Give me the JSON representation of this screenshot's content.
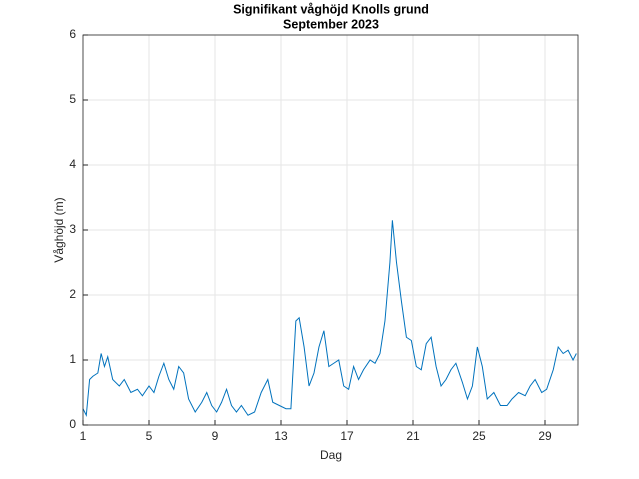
{
  "chart_data": {
    "type": "line",
    "title": "Signifikant våghöjd Knolls grund",
    "subtitle": "September 2023",
    "x_label": "Dag",
    "y_label": "Våghöjd (m)",
    "xlim": [
      1,
      31
    ],
    "xticks": [
      1,
      5,
      9,
      13,
      17,
      21,
      25,
      29
    ],
    "ylim": [
      0,
      6
    ],
    "yticks": [
      0,
      1,
      2,
      3,
      4,
      5,
      6
    ],
    "grid": true,
    "series": [
      {
        "name": "Våghöjd",
        "color": "#0072bd",
        "x": [
          1.0,
          1.2,
          1.4,
          1.6,
          1.9,
          2.1,
          2.3,
          2.5,
          2.8,
          3.2,
          3.5,
          3.9,
          4.3,
          4.6,
          5.0,
          5.3,
          5.6,
          5.9,
          6.2,
          6.5,
          6.8,
          7.1,
          7.4,
          7.8,
          8.2,
          8.5,
          8.8,
          9.1,
          9.4,
          9.7,
          10.0,
          10.3,
          10.6,
          11.0,
          11.4,
          11.8,
          12.2,
          12.5,
          12.9,
          13.3,
          13.6,
          13.9,
          14.1,
          14.4,
          14.7,
          15.0,
          15.3,
          15.6,
          15.9,
          16.2,
          16.5,
          16.8,
          17.1,
          17.4,
          17.7,
          18.0,
          18.4,
          18.7,
          19.0,
          19.3,
          19.6,
          19.75,
          20.0,
          20.3,
          20.6,
          20.9,
          21.2,
          21.5,
          21.8,
          22.1,
          22.4,
          22.7,
          23.0,
          23.3,
          23.6,
          24.0,
          24.3,
          24.6,
          24.9,
          25.2,
          25.5,
          25.9,
          26.3,
          26.7,
          27.0,
          27.4,
          27.8,
          28.1,
          28.4,
          28.8,
          29.1,
          29.5,
          29.8,
          30.1,
          30.4,
          30.7,
          30.9
        ],
        "values": [
          0.25,
          0.15,
          0.7,
          0.75,
          0.8,
          1.1,
          0.9,
          1.05,
          0.7,
          0.6,
          0.7,
          0.5,
          0.55,
          0.45,
          0.6,
          0.5,
          0.75,
          0.95,
          0.7,
          0.55,
          0.9,
          0.8,
          0.4,
          0.2,
          0.35,
          0.5,
          0.3,
          0.2,
          0.35,
          0.55,
          0.3,
          0.2,
          0.3,
          0.15,
          0.2,
          0.5,
          0.7,
          0.35,
          0.3,
          0.25,
          0.25,
          1.6,
          1.65,
          1.2,
          0.6,
          0.8,
          1.2,
          1.45,
          0.9,
          0.95,
          1.0,
          0.6,
          0.55,
          0.9,
          0.7,
          0.85,
          1.0,
          0.95,
          1.1,
          1.6,
          2.5,
          3.15,
          2.5,
          1.9,
          1.35,
          1.3,
          0.9,
          0.85,
          1.25,
          1.35,
          0.9,
          0.6,
          0.7,
          0.85,
          0.95,
          0.65,
          0.4,
          0.6,
          1.2,
          0.9,
          0.4,
          0.5,
          0.3,
          0.3,
          0.4,
          0.5,
          0.45,
          0.6,
          0.7,
          0.5,
          0.55,
          0.85,
          1.2,
          1.1,
          1.15,
          1.0,
          1.1
        ]
      }
    ]
  }
}
